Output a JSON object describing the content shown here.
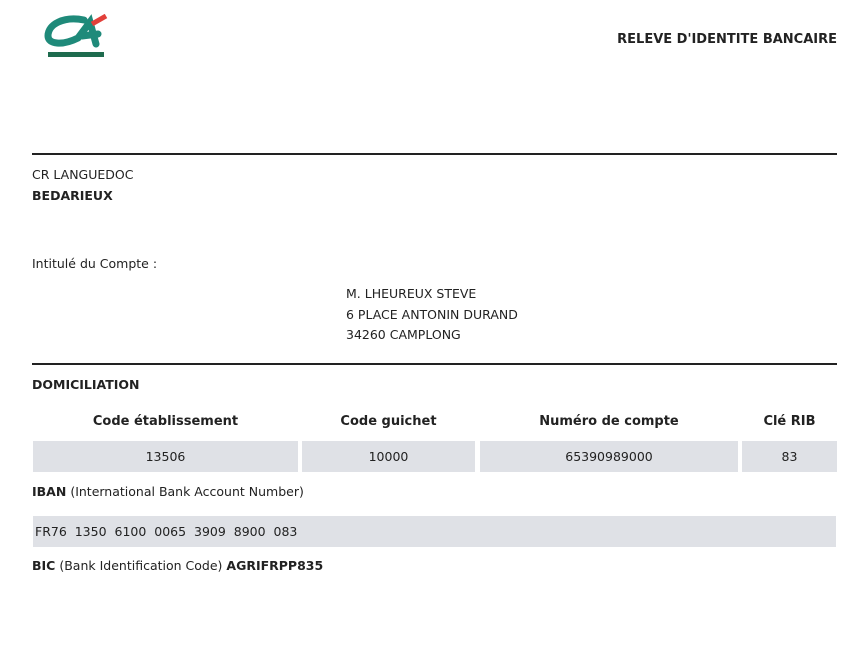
{
  "header": {
    "logo_text": "CA",
    "title": "RELEVE D'IDENTITE BANCAIRE"
  },
  "bank": {
    "name": "CR LANGUEDOC",
    "branch": "BEDARIEUX"
  },
  "account": {
    "label": "Intitulé du Compte :",
    "holder_lines": [
      "M. LHEUREUX STEVE",
      "6 PLACE ANTONIN DURAND",
      "34260 CAMPLONG"
    ]
  },
  "domiciliation": {
    "title": "DOMICILIATION",
    "columns": [
      {
        "header": "Code établissement",
        "value": "13506"
      },
      {
        "header": "Code guichet",
        "value": "10000"
      },
      {
        "header": "Numéro de compte",
        "value": "65390989000"
      },
      {
        "header": "Clé RIB",
        "value": "83"
      }
    ]
  },
  "iban": {
    "label": "IBAN",
    "description": "(International Bank Account Number)",
    "value": "FR76  1350  6100  0065  3909  8900  083"
  },
  "bic": {
    "label": "BIC",
    "description": "(Bank Identification Code)",
    "value": "AGRIFRPP835"
  },
  "colors": {
    "logo_teal": "#1f8a7a",
    "logo_red": "#e2403a",
    "logo_green": "#1e6b4e",
    "cell_bg": "#dfe1e6"
  }
}
